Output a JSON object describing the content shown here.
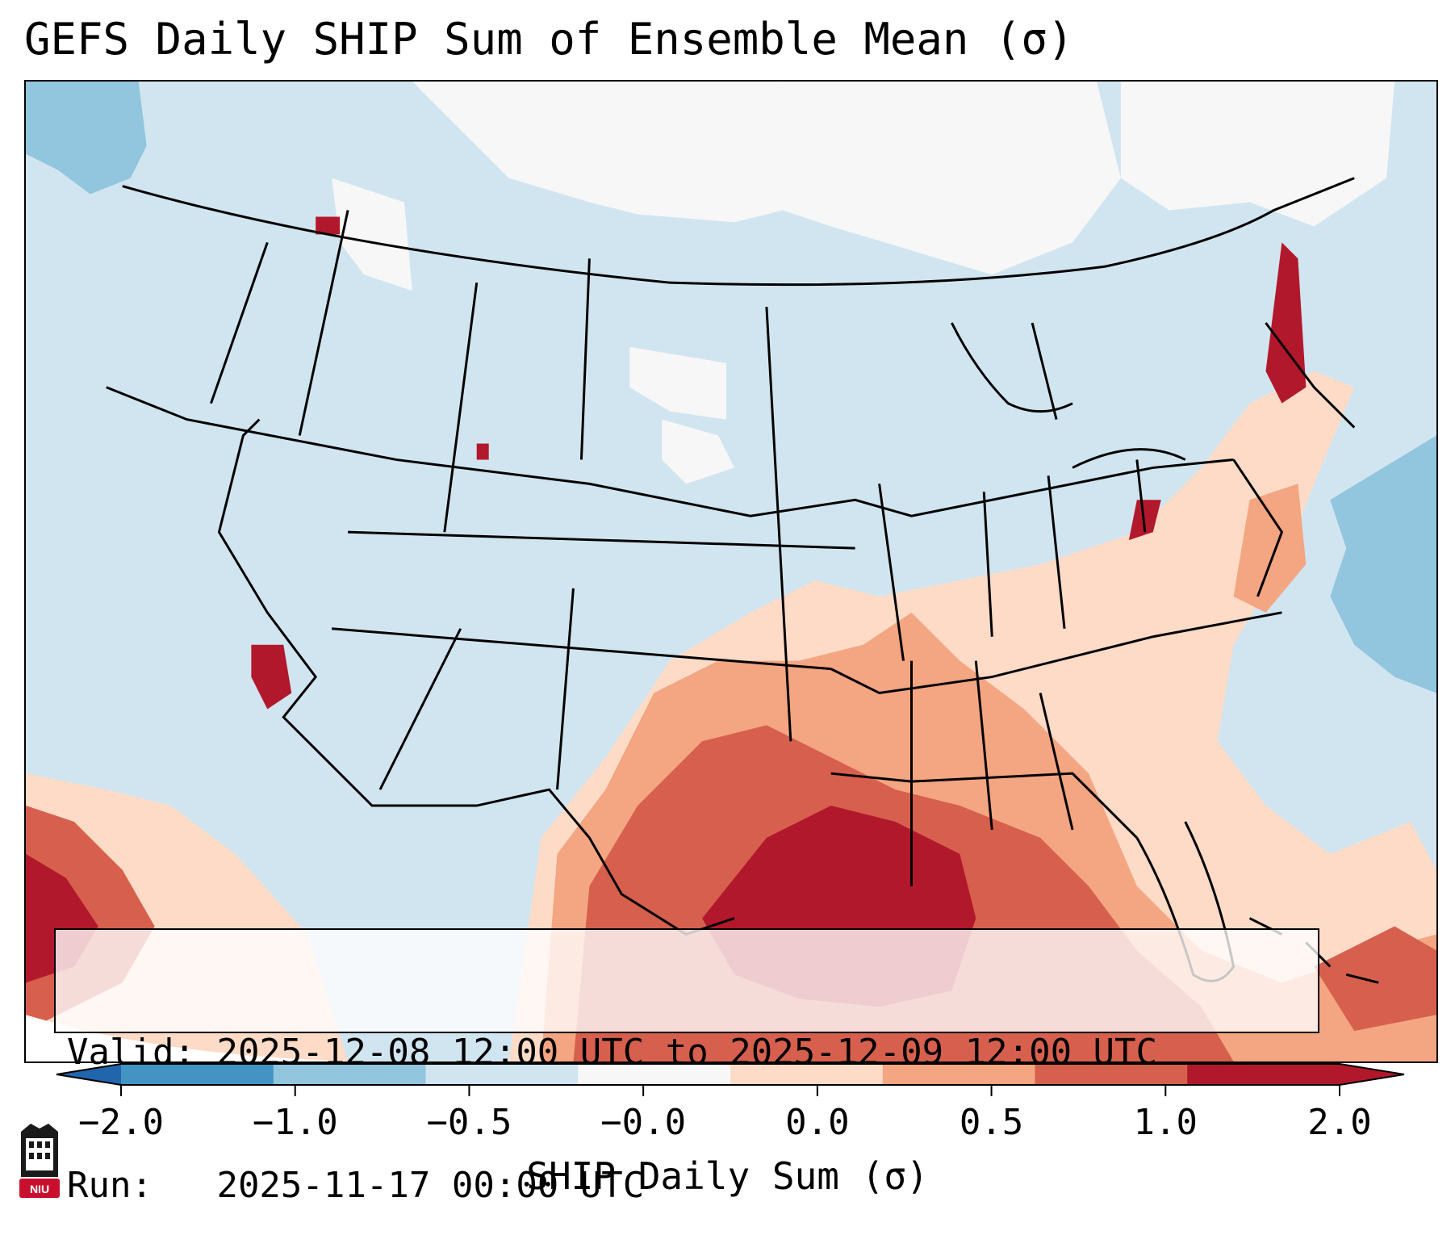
{
  "title": "GEFS Daily SHIP Sum of Ensemble Mean (σ)",
  "info": {
    "valid_label": "Valid:",
    "valid_value": "2025-12-08 12:00 UTC to 2025-12-09 12:00 UTC",
    "run_label": "Run:",
    "run_value": "2025-11-17 00:00 UTC"
  },
  "colorbar": {
    "label": "SHIP Daily Sum (σ)",
    "ticks": [
      "−2.0",
      "−1.0",
      "−0.5",
      "−0.0",
      "0.0",
      "0.5",
      "1.0",
      "2.0"
    ],
    "colors": [
      "#4393c3",
      "#92c5de",
      "#d1e5f0",
      "#f7f7f7",
      "#fddbc7",
      "#f4a582",
      "#d6604d",
      "#b2182b"
    ],
    "extend_low_color": "#2166ac",
    "extend_high_color": "#b2182b"
  },
  "logo": {
    "text": "NIU",
    "color": "#c8102e"
  },
  "legend_colors": {
    "background": "#d1e5f0",
    "neutral": "#f7f7f7",
    "light_pos": "#fddbc7",
    "mid_pos": "#f4a582",
    "high_pos": "#d6604d",
    "max_pos": "#b2182b",
    "neg": "#92c5de"
  }
}
